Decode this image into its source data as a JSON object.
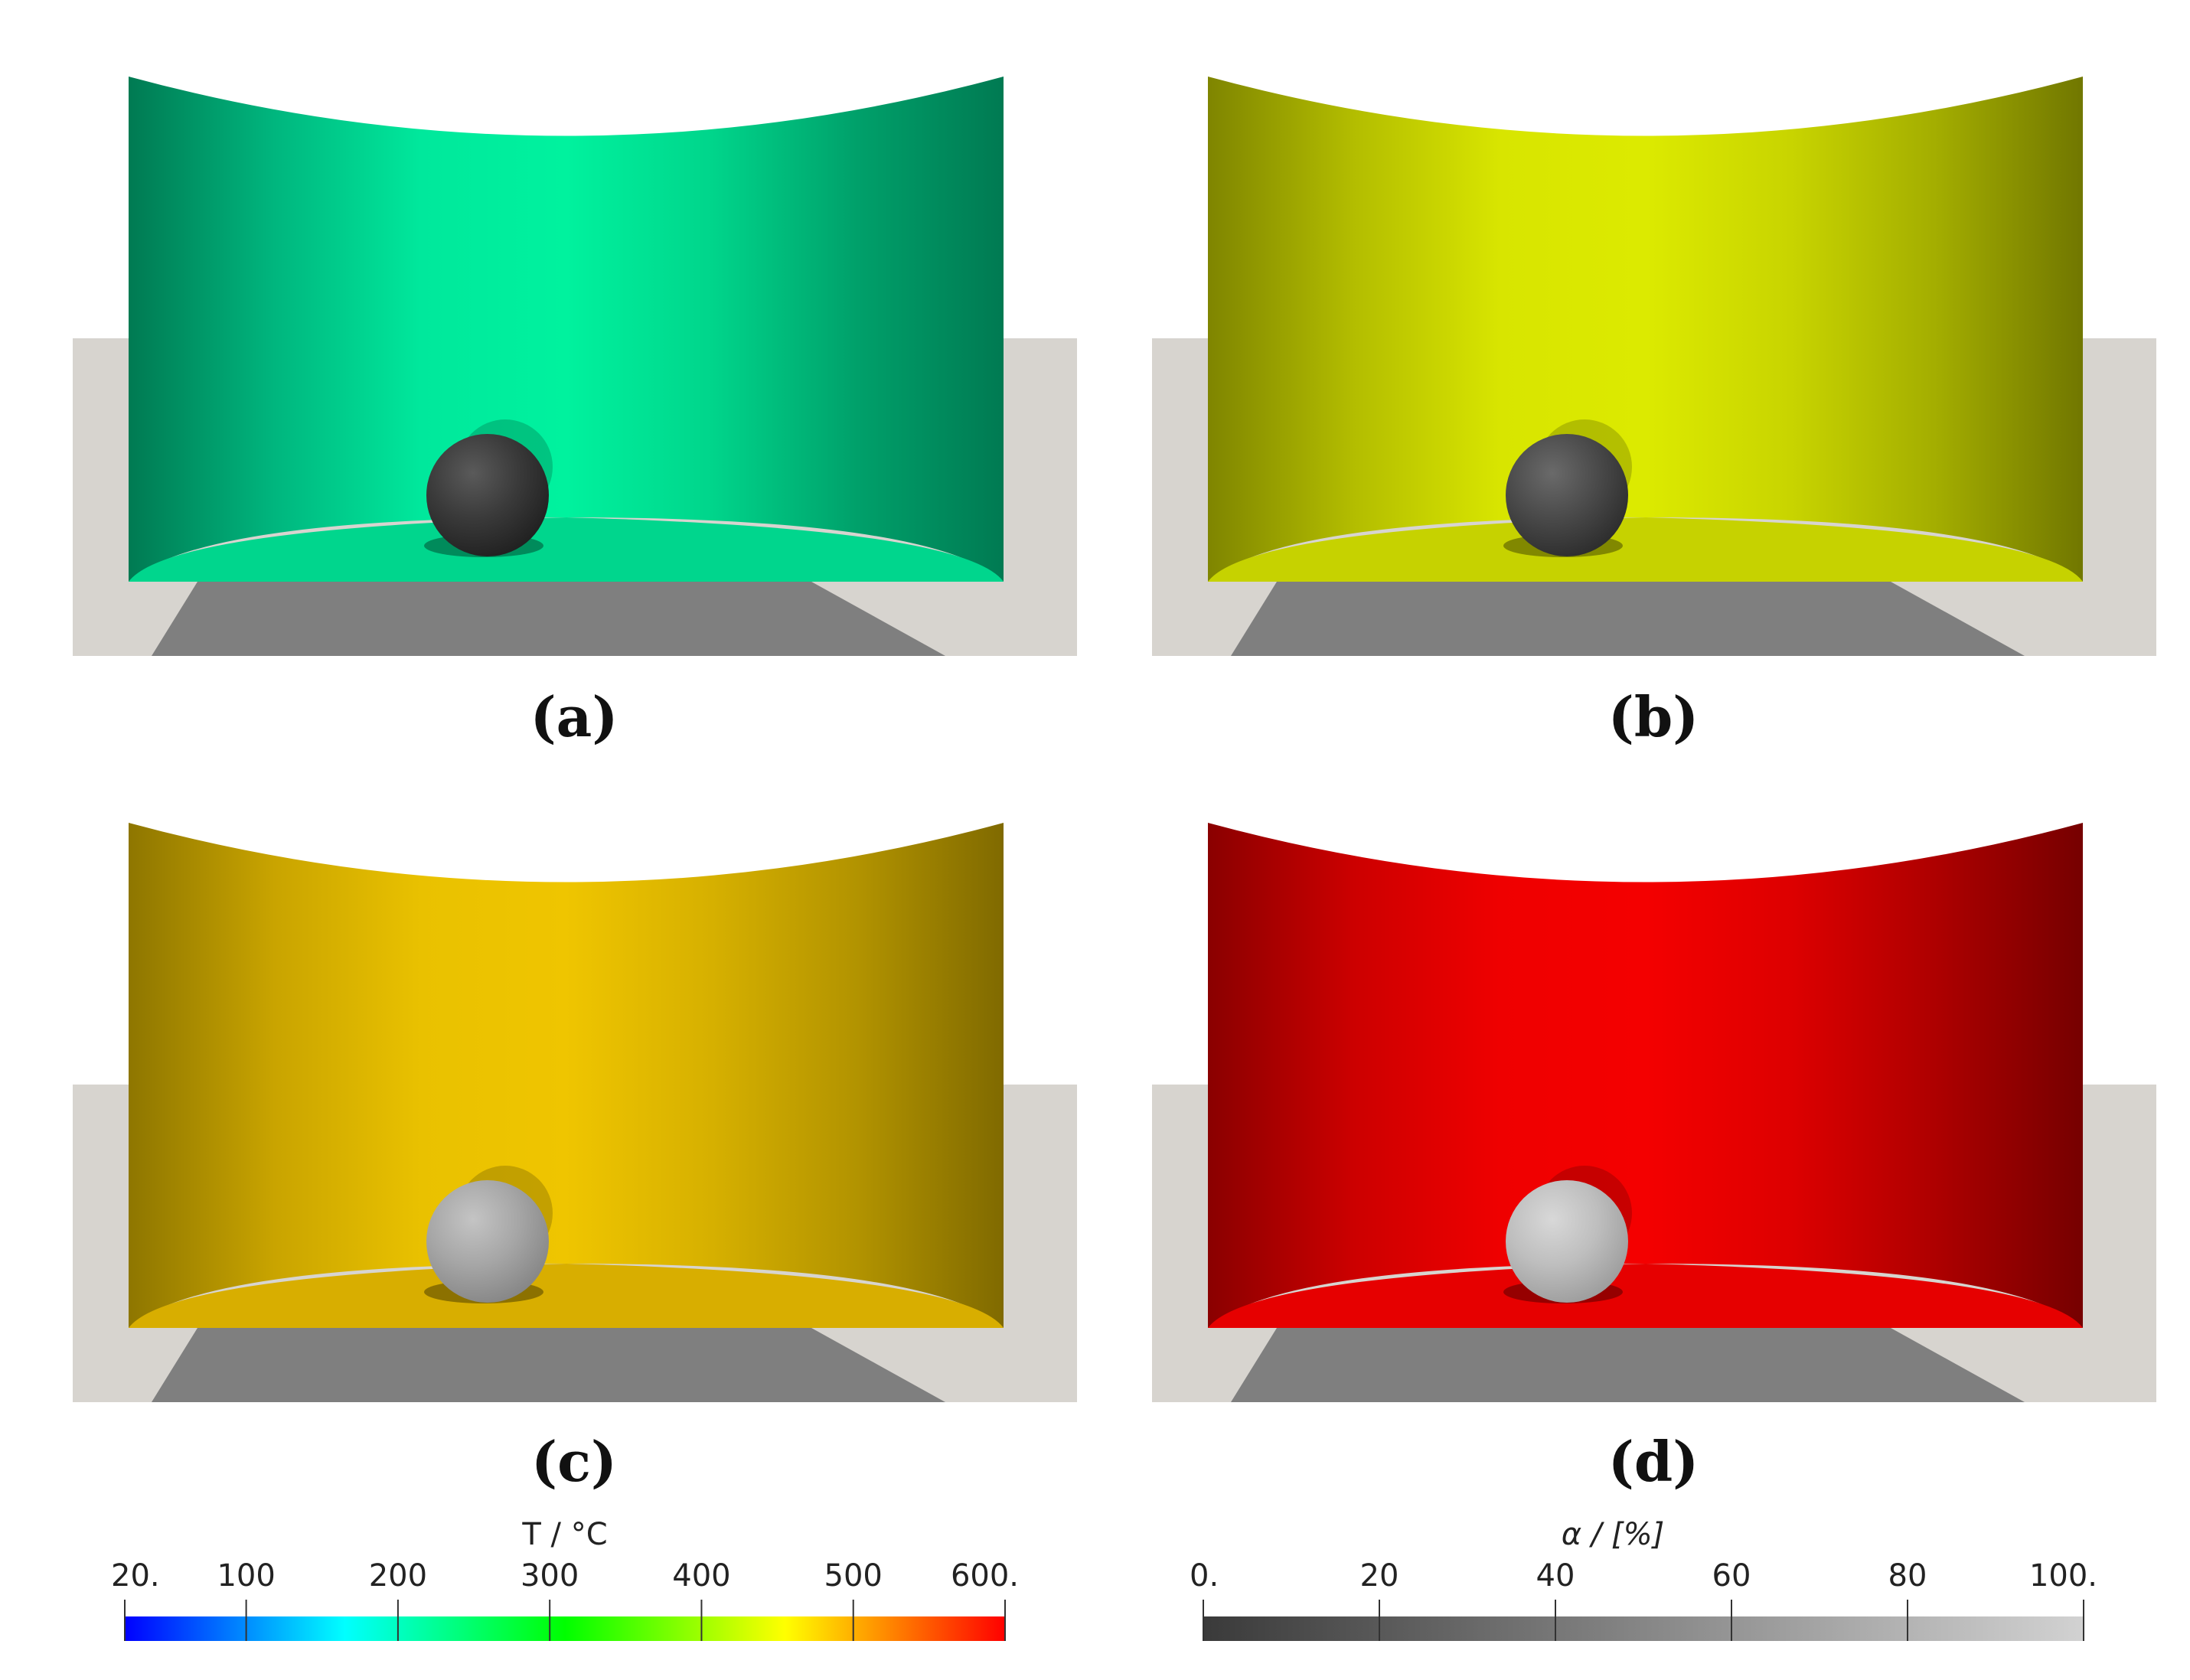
{
  "panels": [
    {
      "caption": "(a)",
      "wall_colors": [
        "#007a52",
        "#00b67e",
        "#00e89c",
        "#00f29e",
        "#00d58b",
        "#00a06a",
        "#007a52"
      ],
      "floor_color": "#00d68d",
      "sphere_colors": [
        "#5a5a5a",
        "#3a3a3a",
        "#1e1e1e"
      ]
    },
    {
      "caption": "(b)",
      "wall_colors": [
        "#7f8500",
        "#b3bd00",
        "#d8e500",
        "#dcea00",
        "#c8d400",
        "#a3ad00",
        "#717700"
      ],
      "floor_color": "#c6d200",
      "sphere_colors": [
        "#6a6a6a",
        "#4a4a4a",
        "#2a2a2a"
      ]
    },
    {
      "caption": "(c)",
      "wall_colors": [
        "#8e7600",
        "#c9a400",
        "#e9c100",
        "#efc500",
        "#d6b000",
        "#b29300",
        "#806a00"
      ],
      "floor_color": "#d8ae00",
      "sphere_colors": [
        "#c4c4c4",
        "#a6a6a6",
        "#838383"
      ]
    },
    {
      "caption": "(d)",
      "wall_colors": [
        "#8a0000",
        "#cc0000",
        "#ef0000",
        "#f40000",
        "#dd0000",
        "#ad0000",
        "#760000"
      ],
      "floor_color": "#e60000",
      "sphere_colors": [
        "#d8d8d8",
        "#bebebe",
        "#9a9a9a"
      ]
    }
  ],
  "colorbars": [
    {
      "title": "T / °C",
      "tick_labels": [
        "20.",
        "100",
        "200",
        "300",
        "400",
        "500",
        "600."
      ],
      "tick_values": [
        20,
        100,
        200,
        300,
        400,
        500,
        600
      ],
      "range": [
        20,
        600
      ],
      "gradient": [
        "#0000ff",
        "#00ffff",
        "#00ff00",
        "#ffff00",
        "#ff0000"
      ]
    },
    {
      "title": "α / [%]",
      "tick_labels": [
        "0.",
        "20",
        "40",
        "60",
        "80",
        "100."
      ],
      "tick_values": [
        0,
        20,
        40,
        60,
        80,
        100
      ],
      "range": [
        0,
        100
      ],
      "gradient": [
        "#3a3a3a",
        "#d2d2d2"
      ]
    }
  ],
  "scene_colors": {
    "background_box": "#d7d4cf",
    "ground_shadow": "#7f7f7f",
    "ghost_alpha": 0.18
  }
}
